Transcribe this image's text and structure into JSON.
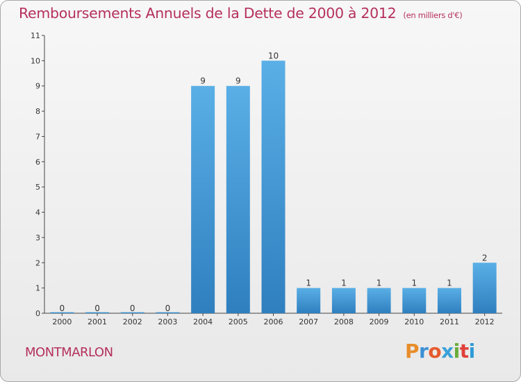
{
  "title": "Remboursements Annuels de la Dette de 2000 à 2012",
  "unit": "(en milliers d'€)",
  "commune": "MONTMARLON",
  "logo": {
    "letters": [
      "P",
      "r",
      "o",
      "x",
      "i",
      "t",
      "i"
    ],
    "colors": [
      "#e78d2a",
      "#3c8fd4",
      "#e65a2d",
      "#3aa1d9",
      "#6aac3a",
      "#e0403a",
      "#2f9ad6"
    ]
  },
  "colors": {
    "bar_top": "#5aafe6",
    "bar_bottom": "#2f7fbf",
    "text_accent": "#b5305c"
  },
  "chart_data": {
    "type": "bar",
    "categories": [
      "2000",
      "2001",
      "2002",
      "2003",
      "2004",
      "2005",
      "2006",
      "2007",
      "2008",
      "2009",
      "2010",
      "2011",
      "2012"
    ],
    "values": [
      0,
      0,
      0,
      0,
      9,
      9,
      10,
      1,
      1,
      1,
      1,
      1,
      2
    ],
    "ylim": [
      0,
      11
    ],
    "yticks": [
      0,
      1,
      2,
      3,
      4,
      5,
      6,
      7,
      8,
      9,
      10,
      11
    ],
    "grid": false,
    "xlabel": "",
    "ylabel": ""
  }
}
